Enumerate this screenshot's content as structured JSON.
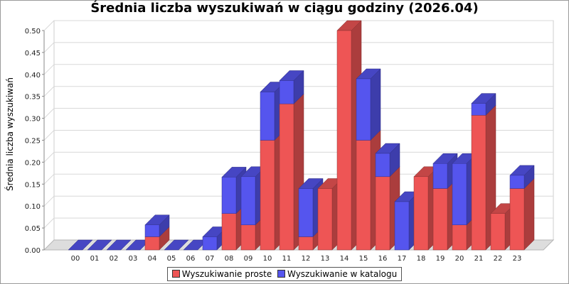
{
  "chart_data": {
    "type": "bar",
    "stacked": true,
    "style": "3d",
    "title": "Średnia liczba wyszukiwań w ciągu godziny (2026.04)",
    "ylabel": "Średnia liczba wyszukiwań",
    "xlabel": "",
    "categories": [
      "00",
      "01",
      "02",
      "03",
      "04",
      "05",
      "06",
      "07",
      "08",
      "09",
      "10",
      "11",
      "12",
      "13",
      "14",
      "15",
      "16",
      "17",
      "18",
      "19",
      "20",
      "21",
      "22",
      "23"
    ],
    "y_ticks": [
      "0.00",
      "0.05",
      "0.10",
      "0.15",
      "0.20",
      "0.25",
      "0.30",
      "0.35",
      "0.40",
      "0.45",
      "0.50"
    ],
    "ylim": [
      0,
      0.5
    ],
    "grid": true,
    "legend_position": "bottom",
    "series": [
      {
        "name": "Wyszukiwanie proste",
        "color": "#ee5555",
        "values": [
          0,
          0,
          0,
          0,
          0.03,
          0,
          0,
          0,
          0.083,
          0.057,
          0.25,
          0.333,
          0.03,
          0.14,
          0.5,
          0.25,
          0.167,
          0,
          0.167,
          0.14,
          0.057,
          0.307,
          0.083,
          0.14
        ]
      },
      {
        "name": "Wyszukiwanie w katalogu",
        "color": "#5555ee",
        "values": [
          0,
          0,
          0,
          0,
          0.027,
          0,
          0,
          0.03,
          0.083,
          0.11,
          0.11,
          0.053,
          0.11,
          0,
          0,
          0.14,
          0.053,
          0.11,
          0,
          0.057,
          0.14,
          0.027,
          0,
          0.03
        ]
      }
    ]
  }
}
